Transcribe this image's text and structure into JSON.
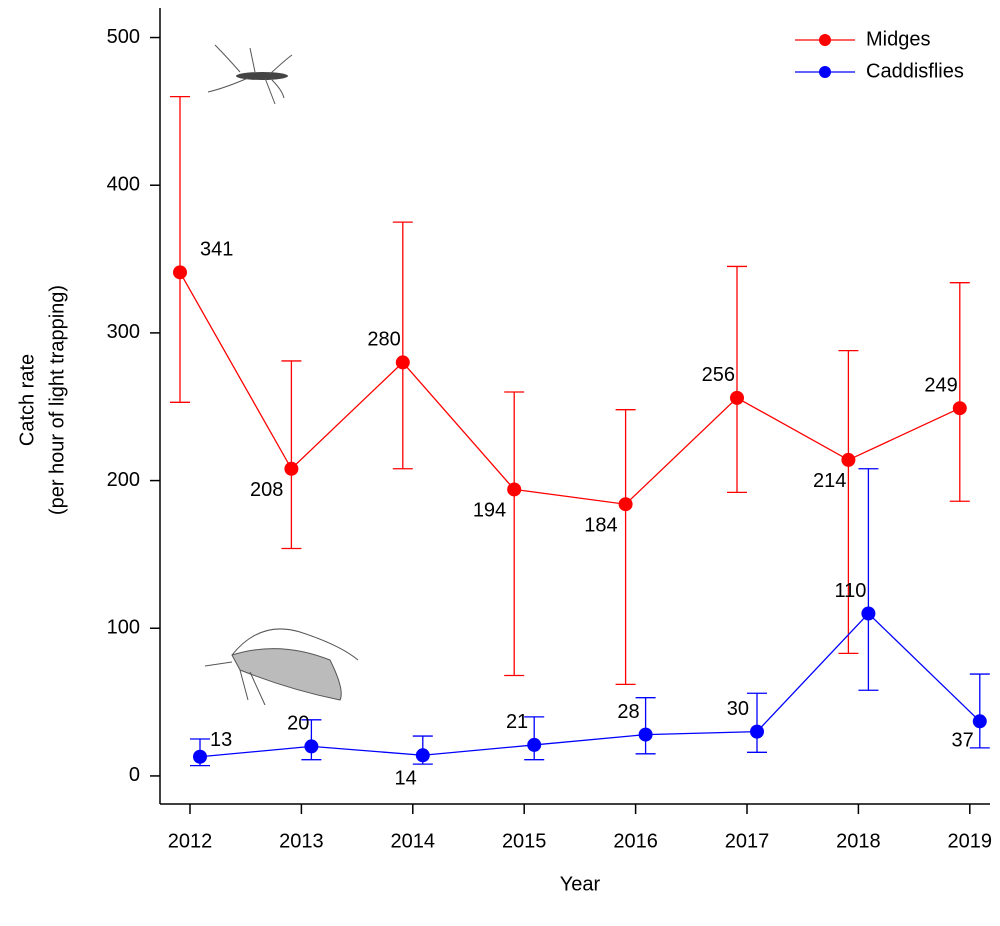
{
  "chart_data": {
    "type": "line",
    "x_label": "Year",
    "y_label": [
      "Catch rate",
      "(per hour of light trapping)"
    ],
    "categories": [
      "2012",
      "2013",
      "2014",
      "2015",
      "2016",
      "2017",
      "2018",
      "2019"
    ],
    "series": [
      {
        "name": "Midges",
        "color": "#ff0000",
        "values": [
          341,
          208,
          280,
          194,
          184,
          256,
          214,
          249
        ],
        "lower": [
          253,
          154,
          208,
          68,
          62,
          192,
          83,
          186
        ],
        "upper": [
          460,
          281,
          375,
          260,
          248,
          345,
          288,
          334
        ]
      },
      {
        "name": "Caddisflies",
        "color": "#0000ff",
        "values": [
          13,
          20,
          14,
          21,
          28,
          30,
          110,
          37
        ],
        "lower": [
          7,
          11,
          8,
          11,
          15,
          16,
          58,
          19
        ],
        "upper": [
          25,
          38,
          27,
          40,
          53,
          56,
          208,
          69
        ]
      }
    ],
    "ylim": [
      -19,
      520
    ],
    "yticks": [
      0,
      100,
      200,
      300,
      400,
      500
    ],
    "legend": "top-right"
  }
}
